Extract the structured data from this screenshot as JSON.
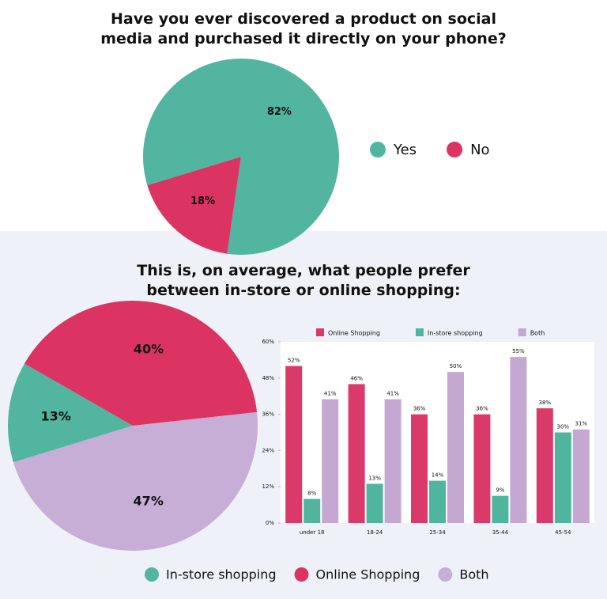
{
  "chart_data": [
    {
      "type": "pie",
      "title": "Have you ever discovered a product on social media and purchased it directly on your phone?",
      "categories": [
        "Yes",
        "No"
      ],
      "values": [
        82,
        18
      ],
      "value_labels": [
        "82%",
        "18%"
      ],
      "colors": [
        "#52b5a0",
        "#dc3462"
      ],
      "legend": "right"
    },
    {
      "type": "pie",
      "title": "This is, on average, what people prefer between in-store or online shopping:",
      "categories": [
        "In-store shopping",
        "Online Shopping",
        "Both"
      ],
      "values": [
        13,
        40,
        47
      ],
      "value_labels": [
        "13%",
        "40%",
        "47%"
      ],
      "colors": [
        "#52b5a0",
        "#dc3462",
        "#c7aed6"
      ],
      "legend": "bottom"
    },
    {
      "type": "bar",
      "categories": [
        "under 18",
        "18-24",
        "25-34",
        "35-44",
        "45-54"
      ],
      "series": [
        {
          "name": "Online Shopping",
          "color": "#d93a6a",
          "values": [
            52,
            46,
            36,
            36,
            38
          ],
          "value_labels": [
            "52%",
            "46%",
            "36%",
            "36%",
            "38%"
          ]
        },
        {
          "name": "In-store shopping",
          "color": "#4fb59e",
          "values": [
            8,
            13,
            14,
            9,
            30
          ],
          "value_labels": [
            "8%",
            "13%",
            "14%",
            "9%",
            "30%"
          ]
        },
        {
          "name": "Both",
          "color": "#c5a8d2",
          "values": [
            41,
            41,
            50,
            55,
            31
          ],
          "value_labels": [
            "41%",
            "41%",
            "50%",
            "55%",
            "31%"
          ]
        }
      ],
      "ylim": [
        0,
        60
      ],
      "yticks": [
        {
          "value": 0,
          "label": "0%"
        },
        {
          "value": 12,
          "label": "12%"
        },
        {
          "value": 24,
          "label": "24%"
        },
        {
          "value": 36,
          "label": "36%"
        },
        {
          "value": 48,
          "label": "48%"
        },
        {
          "value": 60,
          "label": "60%"
        }
      ],
      "legend": "top",
      "grid": false
    }
  ]
}
